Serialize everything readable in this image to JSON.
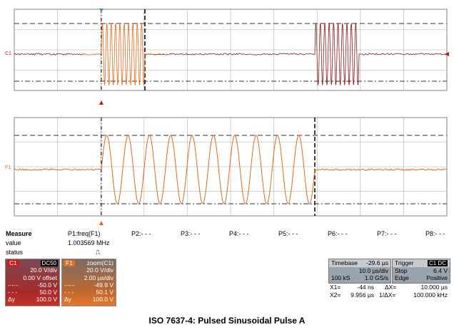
{
  "channels": {
    "c1_label": "C1",
    "f1_label": "F1"
  },
  "measure": {
    "title": "Measure",
    "row_value": "value",
    "row_status": "status",
    "params": [
      {
        "name": "P1:freq(F1)",
        "value": "1.003569 MHz",
        "status": "⎍"
      },
      {
        "name": "P2:- - -",
        "value": "",
        "status": ""
      },
      {
        "name": "P3:- - -",
        "value": "",
        "status": ""
      },
      {
        "name": "P4:- - -",
        "value": "",
        "status": ""
      },
      {
        "name": "P5:- - -",
        "value": "",
        "status": ""
      },
      {
        "name": "P6:- - -",
        "value": "",
        "status": ""
      },
      {
        "name": "P7:- - -",
        "value": "",
        "status": ""
      },
      {
        "name": "P8:- - -",
        "value": "",
        "status": ""
      }
    ]
  },
  "c1_box": {
    "tag": "C1",
    "coupling": "DC50",
    "vdiv": "20.0 V/div",
    "offset": "0.00 V offset",
    "row1": "-50.0 V",
    "row2": "50.0 V",
    "dy_label": "Δy",
    "dy": "100.0 V"
  },
  "f1_box": {
    "tag": "F1",
    "source": "zoom(C1)",
    "vdiv": "20.0 V/div",
    "tdiv": "2.00 µs/div",
    "row1": "-49.9 V",
    "row2": "50.1 V",
    "dy_label": "Δy",
    "dy": "100.0 V"
  },
  "timebase": {
    "label": "Timebase",
    "delay": "-29.6 µs",
    "tdiv": "10.0 µs/div",
    "samples": "100 kS",
    "rate": "1.0 GS/s"
  },
  "trigger": {
    "label": "Trigger",
    "tag": "C1 DC",
    "mode": "Stop",
    "level": "6.4 V",
    "type": "Edge",
    "slope": "Positive"
  },
  "cursors": {
    "x1_label": "X1=",
    "x1": "-44 ns",
    "dx_label": "ΔX=",
    "dx": "10.000 µs",
    "x2_label": "X2=",
    "x2": "9.956 µs",
    "inv_label": "1/ΔX=",
    "inv": "100.000 kHz"
  },
  "caption": "ISO 7637-4: Pulsed Sinusoidal Pulse A",
  "colors": {
    "c1": "#8a1818",
    "f1": "#e06a1a",
    "grid": "#b0b0b0"
  }
}
